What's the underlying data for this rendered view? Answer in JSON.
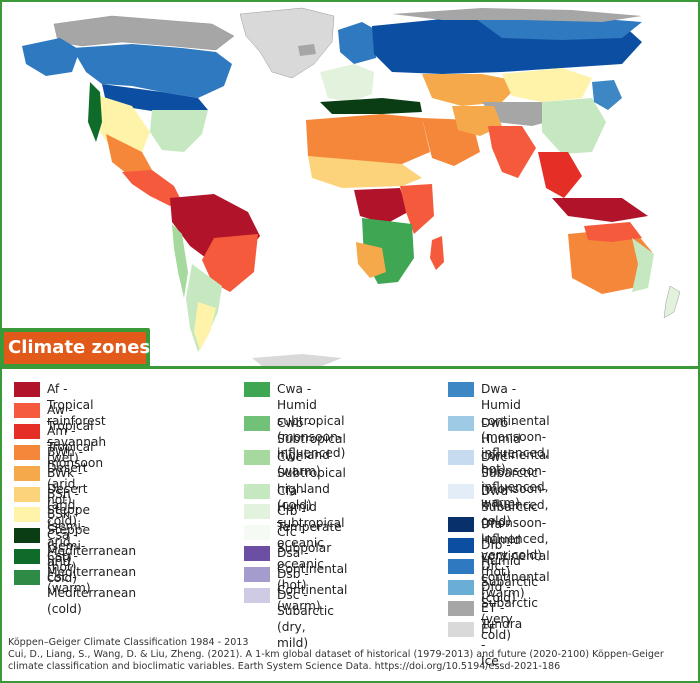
{
  "title": "Climate zones",
  "colors": {
    "frame": "#3a9a3a",
    "title_bg": "#e15a1a",
    "ocean": "#ffffff",
    "border": "#999999"
  },
  "legend": {
    "columns": [
      [
        {
          "code": "Af",
          "label": "Af - Tropical rainforest",
          "color": "#b0132a"
        },
        {
          "code": "Aw",
          "label": "Aw - Tropical savannah (wet)",
          "color": "#f55a3c"
        },
        {
          "code": "Am",
          "label": "Am - Tropical monsoon",
          "color": "#e52e25"
        },
        {
          "code": "BWh",
          "label": "BWh - Desert (arid, hot)",
          "color": "#f5873a"
        },
        {
          "code": "BWk",
          "label": "BWk - Desert (arid, cold)",
          "color": "#f6a94a"
        },
        {
          "code": "BSh",
          "label": "BSh - Steppe (semi-arid, hot)",
          "color": "#fcd37a"
        },
        {
          "code": "BSk",
          "label": "BSk - Steppe (semi-arid, cold)",
          "color": "#fef3a8"
        },
        {
          "code": "Csa",
          "label": "Csa - Mediterranean (hot)",
          "color": "#0a3d14"
        },
        {
          "code": "Csb",
          "label": "Csb - Mediterranean (warm)",
          "color": "#0f6b2a"
        },
        {
          "code": "Csc",
          "label": "Csc - Mediterranean (cold)",
          "color": "#2e8b45"
        }
      ],
      [
        {
          "code": "Cwa",
          "label": "Cwa - Humid subtropical\n(monsoon-influenced)",
          "color": "#3fa654"
        },
        {
          "code": "Cwb",
          "label": "Cwb - Subtropical\nhighland (warm)",
          "color": "#72c178"
        },
        {
          "code": "Cwc",
          "label": "Cwc - Subtropical\nhighland (cold)",
          "color": "#a5d99d"
        },
        {
          "code": "Cfa",
          "label": "Cfa - Humid subtropical",
          "color": "#c6e8c0"
        },
        {
          "code": "Cfb",
          "label": "Cfb - Temperate oceanic",
          "color": "#e2f2dc"
        },
        {
          "code": "Cfc",
          "label": "Cfc - Subpolar oceanic",
          "color": "#f6faf4"
        },
        {
          "code": "Dsa",
          "label": "Dsa - Continental (hot)",
          "color": "#6c4fa3"
        },
        {
          "code": "Dsb",
          "label": "Dsb - Continental (warm)",
          "color": "#a39ccd"
        },
        {
          "code": "Dsc",
          "label": "Dsc - Subarctic (dry, mild)",
          "color": "#cfcbe4"
        }
      ],
      [
        {
          "code": "Dwa",
          "label": "Dwa - Humid continental\n(monsoon-influenced, hot)",
          "color": "#3c87c4"
        },
        {
          "code": "Dwb",
          "label": "Dwb - Humid continental\n(monsoon-influenced, warm)",
          "color": "#9ecae6"
        },
        {
          "code": "Dwc",
          "label": "Dwc - Subarctic\n(monsoon-influenced, cold)",
          "color": "#c6dbef"
        },
        {
          "code": "Dwd",
          "label": "Dwd - Subarctic\n(monsoon-influenced, very cold)",
          "color": "#e3edf7"
        },
        {
          "code": "Dfa",
          "label": "Dfa - Humid continental (hot)",
          "color": "#08306b"
        },
        {
          "code": "Dfb",
          "label": "Dfb - Humid continental (warm)",
          "color": "#0c4fa2"
        },
        {
          "code": "Dfc",
          "label": "Dfc - Subarctic (cold)",
          "color": "#2e79bf"
        },
        {
          "code": "Dfd",
          "label": "Dfd - Subarctic (very cold)",
          "color": "#6aaed6"
        },
        {
          "code": "ET",
          "label": "ET - Tundra",
          "color": "#a6a6a6"
        },
        {
          "code": "EF",
          "label": "EF - Ice",
          "color": "#d9d9d9"
        }
      ]
    ]
  },
  "credits": {
    "line1": "Köppen–Geiger Climate Classification 1984 - 2013",
    "line2": "Cui, D., Liang, S., Wang, D. & Liu, Zheng. (2021). A 1-km global dataset of historical (1979-2013) and future (2020-2100) Köppen-Geiger climate classification and bioclimatic variables. Earth System Science Data. https://doi.org/10.5194/essd-2021-186"
  }
}
